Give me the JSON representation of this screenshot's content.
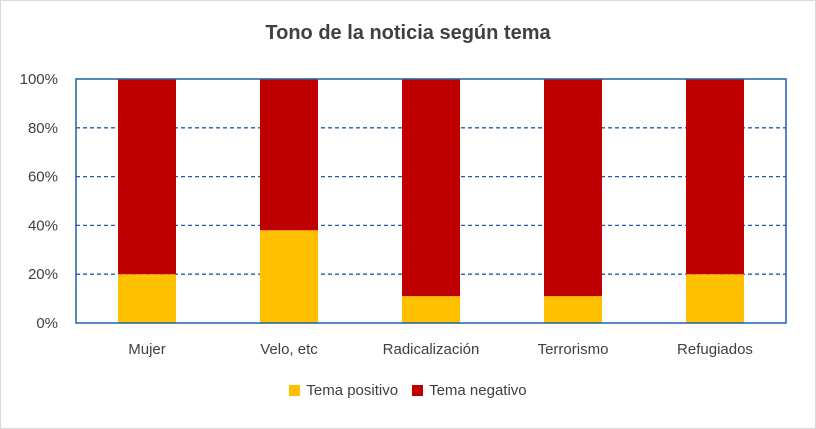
{
  "chart_data": {
    "type": "bar",
    "stacked": true,
    "percent": true,
    "title": "Tono de la noticia según tema",
    "categories": [
      "Mujer",
      "Velo, etc",
      "Radicalización",
      "Terrorismo",
      "Refugiados"
    ],
    "series": [
      {
        "name": "Tema positivo",
        "color": "#ffc000",
        "values": [
          20,
          38,
          11,
          11,
          20
        ]
      },
      {
        "name": "Tema negativo",
        "color": "#c00000",
        "values": [
          80,
          62,
          89,
          89,
          80
        ]
      }
    ],
    "yticks": [
      "0%",
      "20%",
      "40%",
      "60%",
      "80%",
      "100%"
    ],
    "ylim": [
      0,
      100
    ],
    "grid": true,
    "gridline_color": "#1f5fa8",
    "legend_position": "bottom"
  }
}
